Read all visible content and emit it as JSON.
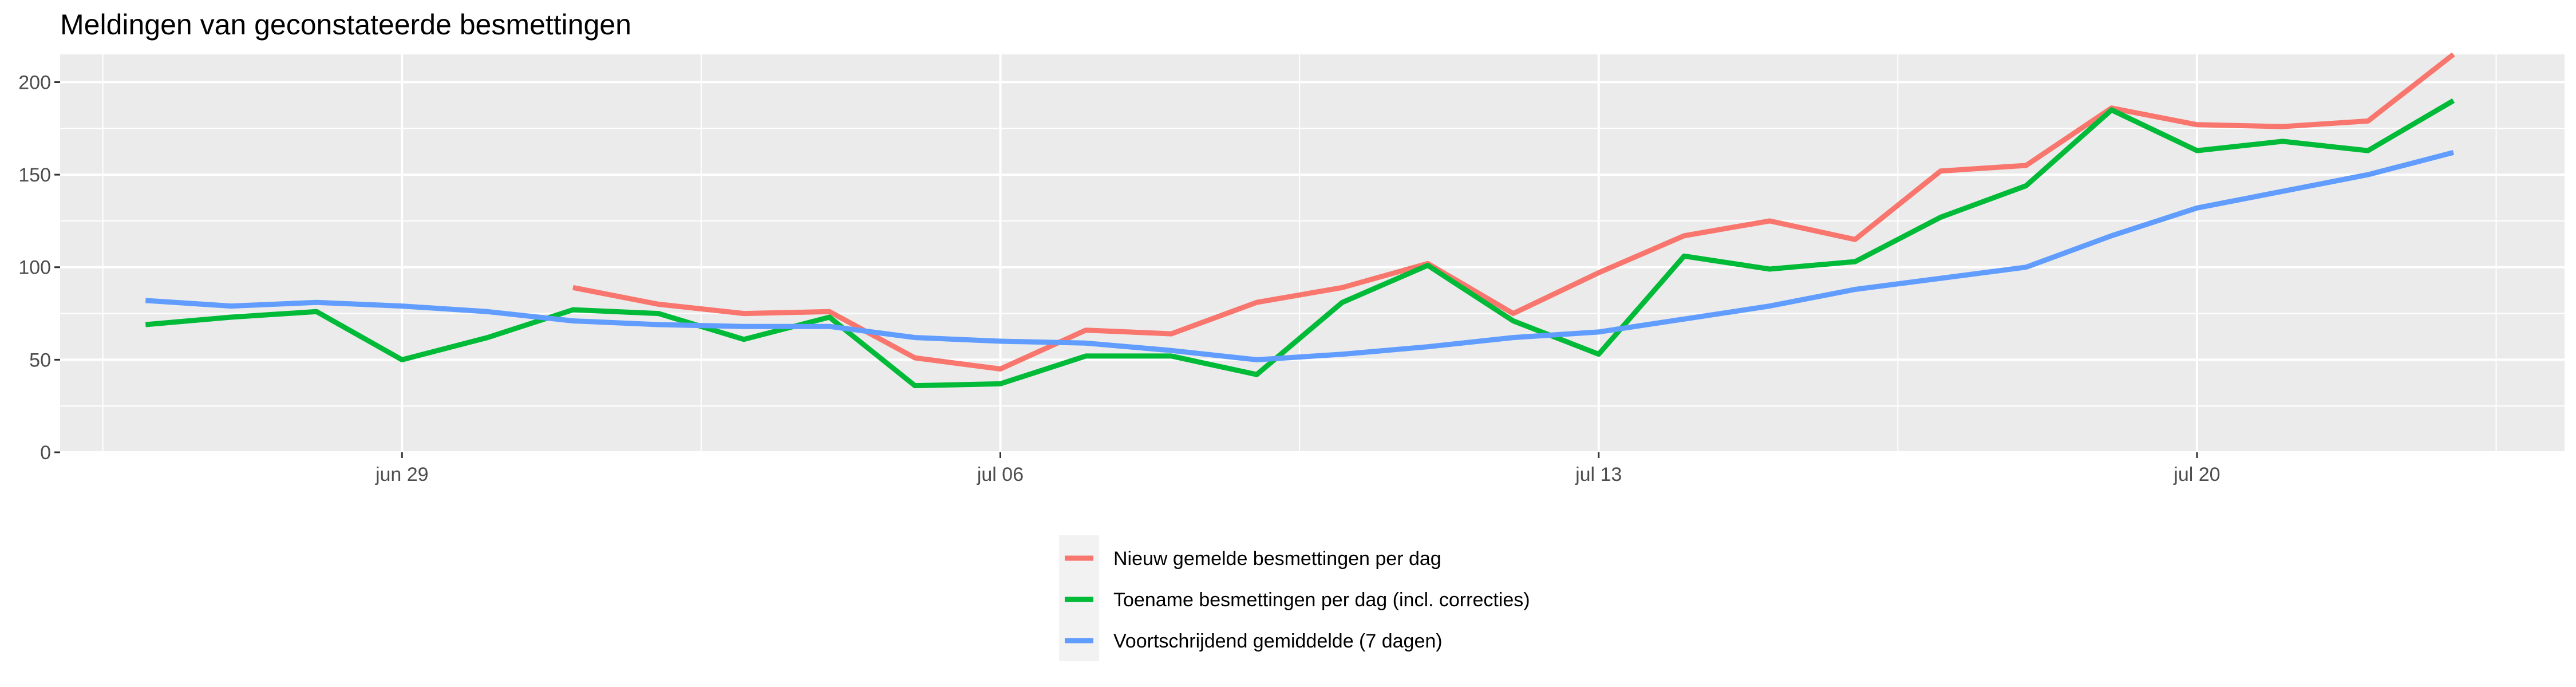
{
  "chart_data": {
    "type": "line",
    "title": "Meldingen van geconstateerde besmettingen",
    "xlabel": "",
    "ylabel": "",
    "x_start": "2020-06-26",
    "x": [
      "jun 26",
      "jun 27",
      "jun 28",
      "jun 29",
      "jun 30",
      "jul 01",
      "jul 02",
      "jul 03",
      "jul 04",
      "jul 05",
      "jul 06",
      "jul 07",
      "jul 08",
      "jul 09",
      "jul 10",
      "jul 11",
      "jul 12",
      "jul 13",
      "jul 14",
      "jul 15",
      "jul 16",
      "jul 17",
      "jul 18",
      "jul 19",
      "jul 20",
      "jul 21",
      "jul 22",
      "jul 23",
      "jul 24"
    ],
    "xlim": [
      "jun 25",
      "jul 24"
    ],
    "x_ticks": [
      {
        "label": "jun 29",
        "index": 3
      },
      {
        "label": "jul 06",
        "index": 10
      },
      {
        "label": "jul 13",
        "index": 17
      },
      {
        "label": "jul 20",
        "index": 24
      }
    ],
    "ylim": [
      0,
      215
    ],
    "y_ticks": [
      0,
      50,
      100,
      150,
      200
    ],
    "grid": true,
    "legend_position": "bottom",
    "series": [
      {
        "name": "Nieuw gemelde besmettingen per dag",
        "color": "#F8766D",
        "values": [
          null,
          null,
          null,
          null,
          null,
          89,
          80,
          75,
          76,
          51,
          45,
          66,
          64,
          81,
          89,
          102,
          75,
          97,
          117,
          125,
          115,
          152,
          155,
          186,
          177,
          176,
          179,
          215,
          null
        ]
      },
      {
        "name": "Toename besmettingen per dag (incl. correcties)",
        "color": "#00BA38",
        "values": [
          69,
          73,
          76,
          50,
          62,
          77,
          75,
          61,
          73,
          36,
          37,
          52,
          52,
          42,
          81,
          101,
          71,
          53,
          106,
          99,
          103,
          127,
          144,
          185,
          163,
          168,
          163,
          190,
          null
        ]
      },
      {
        "name": "Voortschrijdend gemiddelde (7 dagen)",
        "color": "#619CFF",
        "values": [
          82,
          79,
          81,
          79,
          76,
          71,
          69,
          68,
          68,
          62,
          60,
          59,
          55,
          50,
          53,
          57,
          62,
          65,
          72,
          79,
          88,
          94,
          100,
          117,
          132,
          141,
          150,
          162,
          null
        ]
      }
    ]
  }
}
